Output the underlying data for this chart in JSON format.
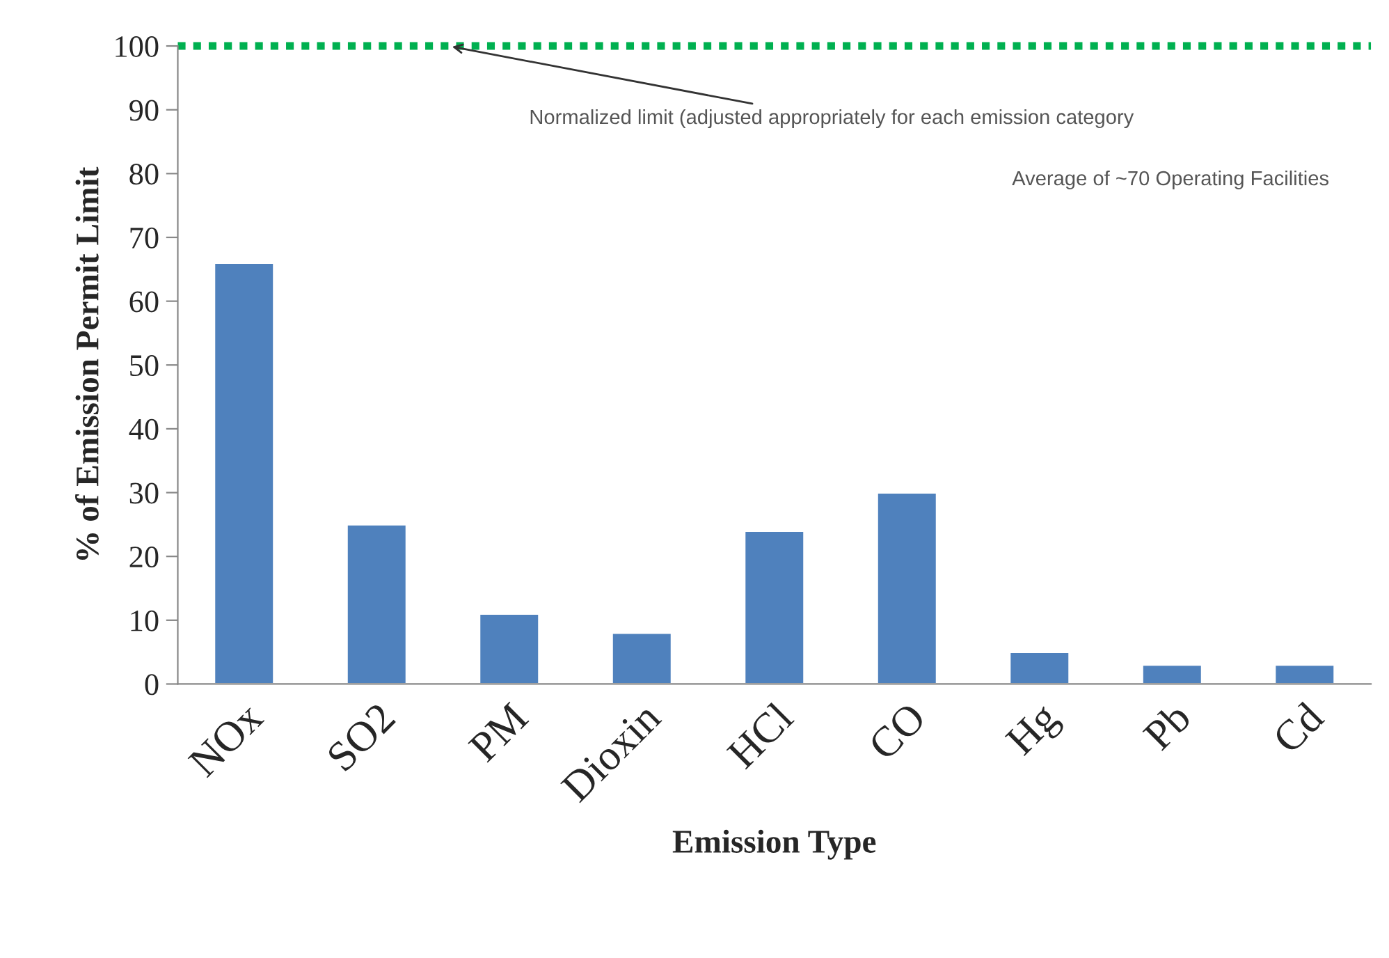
{
  "chart_data": {
    "type": "bar",
    "xlabel": "Emission Type",
    "ylabel": "% of Emission Permit Limit",
    "categories": [
      "NOx",
      "SO2",
      "PM",
      "Dioxin",
      "HCl",
      "CO",
      "Hg",
      "Pb",
      "Cd"
    ],
    "values": [
      66,
      25,
      11,
      8,
      24,
      30,
      5,
      3,
      3
    ],
    "color": "#4f81bd",
    "ylim": [
      0,
      100
    ],
    "yticks": [
      0,
      10,
      20,
      30,
      40,
      50,
      60,
      70,
      80,
      90,
      100
    ],
    "grid": false,
    "ref_lines": [
      {
        "axis": "y",
        "value": 100,
        "label": "Normalized limit (adjusted appropriately for each emission category",
        "color": "#00b050",
        "line_style": "dotted"
      }
    ],
    "annotations": [
      "Average of ~70 Operating Facilities"
    ]
  }
}
